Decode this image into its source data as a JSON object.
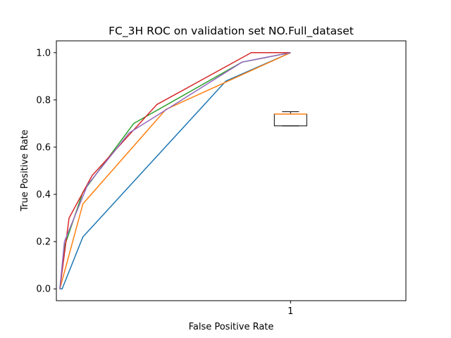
{
  "chart_data": {
    "type": "line",
    "title": "FC_3H ROC on validation set NO.Full_dataset",
    "xlabel": "False Positive Rate",
    "ylabel": "True Positive Rate",
    "xlim": [
      -0.015,
      1.5
    ],
    "ylim": [
      -0.05,
      1.05
    ],
    "x_tick_values": [
      1
    ],
    "x_tick_labels": [
      "1"
    ],
    "y_tick_values": [
      0.0,
      0.2,
      0.4,
      0.6,
      0.8,
      1.0
    ],
    "y_tick_labels": [
      "0.0",
      "0.2",
      "0.4",
      "0.6",
      "0.8",
      "1.0"
    ],
    "grid": false,
    "legend": "none",
    "series": [
      {
        "color": "#1f77b4",
        "x": [
          0.0,
          0.01,
          0.1,
          0.72,
          1.0
        ],
        "y": [
          0.0,
          0.0,
          0.22,
          0.88,
          1.0
        ]
      },
      {
        "color": "#ff7f0e",
        "x": [
          0.0,
          0.1,
          0.46,
          1.0
        ],
        "y": [
          0.0,
          0.36,
          0.76,
          1.0
        ]
      },
      {
        "color": "#2ca02c",
        "x": [
          0.0,
          0.02,
          0.1,
          0.32,
          0.79,
          1.0
        ],
        "y": [
          0.0,
          0.18,
          0.41,
          0.7,
          0.96,
          1.0
        ]
      },
      {
        "color": "#d62728",
        "x": [
          0.0,
          0.04,
          0.14,
          0.42,
          0.83,
          1.0
        ],
        "y": [
          0.0,
          0.3,
          0.48,
          0.78,
          1.0,
          1.0
        ]
      },
      {
        "color": "#9467bd",
        "x": [
          0.0,
          0.02,
          0.12,
          0.3,
          0.79,
          1.0
        ],
        "y": [
          0.0,
          0.2,
          0.44,
          0.66,
          0.96,
          1.0
        ]
      }
    ],
    "boxplot": {
      "x": 1,
      "whisker_low": 0.69,
      "q1": 0.69,
      "median": 0.74,
      "q3": 0.74,
      "whisker_high": 0.75,
      "box_color": "#000000",
      "median_color": "#ff7f0e"
    }
  }
}
